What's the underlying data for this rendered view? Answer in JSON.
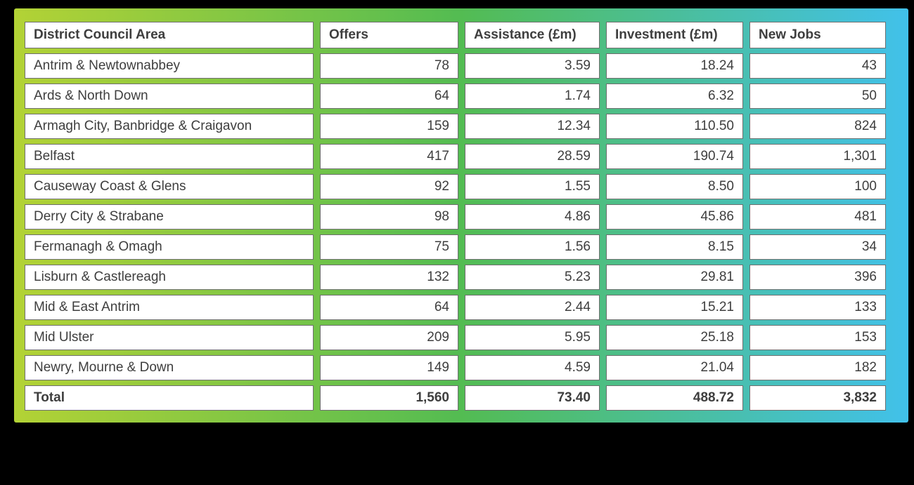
{
  "colors": {
    "background": "#000000",
    "gradient_start": "#b3d235",
    "gradient_mid": "#53bc52",
    "gradient_end": "#41c1ea",
    "cell_background": "#ffffff",
    "cell_border": "#6f6f6f",
    "text": "#3e3e3e"
  },
  "table": {
    "columns": [
      "District Council Area",
      "Offers",
      "Assistance (£m)",
      "Investment (£m)",
      "New Jobs"
    ],
    "rows": [
      [
        "Antrim & Newtownabbey",
        "78",
        "3.59",
        "18.24",
        "43"
      ],
      [
        "Ards & North Down",
        "64",
        "1.74",
        "6.32",
        "50"
      ],
      [
        "Armagh City, Banbridge & Craigavon",
        "159",
        "12.34",
        "110.50",
        "824"
      ],
      [
        "Belfast",
        "417",
        "28.59",
        "190.74",
        "1,301"
      ],
      [
        "Causeway Coast & Glens",
        "92",
        "1.55",
        "8.50",
        "100"
      ],
      [
        "Derry City & Strabane",
        "98",
        "4.86",
        "45.86",
        "481"
      ],
      [
        "Fermanagh & Omagh",
        "75",
        "1.56",
        "8.15",
        "34"
      ],
      [
        "Lisburn & Castlereagh",
        "132",
        "5.23",
        "29.81",
        "396"
      ],
      [
        "Mid & East Antrim",
        "64",
        "2.44",
        "15.21",
        "133"
      ],
      [
        "Mid Ulster",
        "209",
        "5.95",
        "25.18",
        "153"
      ],
      [
        "Newry, Mourne & Down",
        "149",
        "4.59",
        "21.04",
        "182"
      ]
    ],
    "total_row": [
      "Total",
      "1,560",
      "73.40",
      "488.72",
      "3,832"
    ]
  },
  "chart_data": {
    "type": "table",
    "columns": [
      "District Council Area",
      "Offers",
      "Assistance (£m)",
      "Investment (£m)",
      "New Jobs"
    ],
    "rows": [
      {
        "district_council_area": "Antrim & Newtownabbey",
        "offers": 78,
        "assistance_m": 3.59,
        "investment_m": 18.24,
        "new_jobs": 43
      },
      {
        "district_council_area": "Ards & North Down",
        "offers": 64,
        "assistance_m": 1.74,
        "investment_m": 6.32,
        "new_jobs": 50
      },
      {
        "district_council_area": "Armagh City, Banbridge & Craigavon",
        "offers": 159,
        "assistance_m": 12.34,
        "investment_m": 110.5,
        "new_jobs": 824
      },
      {
        "district_council_area": "Belfast",
        "offers": 417,
        "assistance_m": 28.59,
        "investment_m": 190.74,
        "new_jobs": 1301
      },
      {
        "district_council_area": "Causeway Coast & Glens",
        "offers": 92,
        "assistance_m": 1.55,
        "investment_m": 8.5,
        "new_jobs": 100
      },
      {
        "district_council_area": "Derry City & Strabane",
        "offers": 98,
        "assistance_m": 4.86,
        "investment_m": 45.86,
        "new_jobs": 481
      },
      {
        "district_council_area": "Fermanagh & Omagh",
        "offers": 75,
        "assistance_m": 1.56,
        "investment_m": 8.15,
        "new_jobs": 34
      },
      {
        "district_council_area": "Lisburn & Castlereagh",
        "offers": 132,
        "assistance_m": 5.23,
        "investment_m": 29.81,
        "new_jobs": 396
      },
      {
        "district_council_area": "Mid & East Antrim",
        "offers": 64,
        "assistance_m": 2.44,
        "investment_m": 15.21,
        "new_jobs": 133
      },
      {
        "district_council_area": "Mid Ulster",
        "offers": 209,
        "assistance_m": 5.95,
        "investment_m": 25.18,
        "new_jobs": 153
      },
      {
        "district_council_area": "Newry, Mourne & Down",
        "offers": 149,
        "assistance_m": 4.59,
        "investment_m": 21.04,
        "new_jobs": 182
      }
    ],
    "total": {
      "district_council_area": "Total",
      "offers": 1560,
      "assistance_m": 73.4,
      "investment_m": 488.72,
      "new_jobs": 3832
    }
  }
}
